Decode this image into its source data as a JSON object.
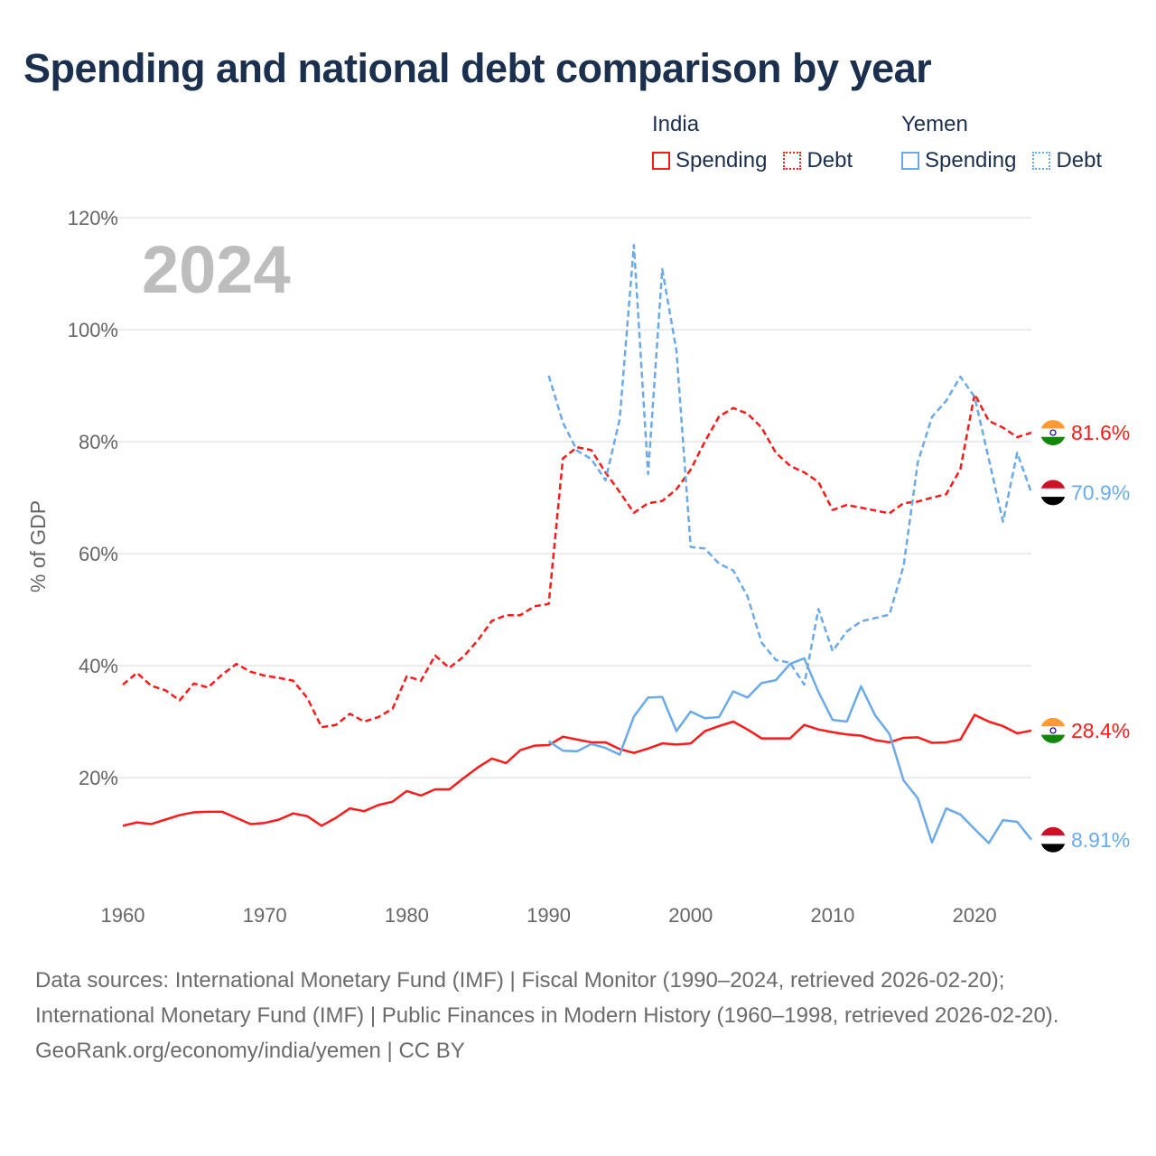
{
  "title": "Spending and national debt comparison by year",
  "legend": {
    "groups": [
      {
        "country": "India",
        "items": [
          "Spending",
          "Debt"
        ],
        "color": "#ff1a1a"
      },
      {
        "country": "Yemen",
        "items": [
          "Spending",
          "Debt"
        ],
        "color": "#6aaaea"
      }
    ]
  },
  "footer": {
    "line1": "Data sources: International Monetary Fund (IMF) | Fiscal Monitor (1990–2024, retrieved 2026-02-20); International Monetary Fund (IMF) | Public Finances in Modern History (1960–1998, retrieved 2026-02-20).",
    "line2": "GeoRank.org/economy/india/yemen | CC BY"
  },
  "chart_data": {
    "type": "line",
    "title": "Spending and national debt comparison by year",
    "year_label": "2024",
    "xlabel": "",
    "ylabel": "% of GDP",
    "xlim": [
      1960,
      2024
    ],
    "ylim": [
      0,
      120
    ],
    "x_ticks": [
      1960,
      1970,
      1980,
      1990,
      2000,
      2010,
      2020
    ],
    "y_ticks": [
      "20%",
      "40%",
      "60%",
      "80%",
      "100%",
      "120%"
    ],
    "y_tick_values": [
      20,
      40,
      60,
      80,
      100,
      120
    ],
    "grid": true,
    "legend_position": "top-right",
    "series": [
      {
        "name": "India Spending",
        "country": "India",
        "style": "solid",
        "color": "#ff1a1a",
        "start": 1960,
        "end_label": "28.4%",
        "values": [
          11.4,
          12,
          11.7,
          12.5,
          13.3,
          13.8,
          13.9,
          13.9,
          12.8,
          11.7,
          11.9,
          12.5,
          13.6,
          13.1,
          11.4,
          12.8,
          14.5,
          14,
          15.1,
          15.7,
          17.6,
          16.8,
          17.9,
          17.9,
          19.9,
          21.8,
          23.4,
          22.6,
          24.9,
          25.7,
          25.8,
          27.3,
          26.8,
          26.3,
          26.3,
          25.1,
          24.4,
          25.2,
          26.1,
          25.9,
          26.1,
          28.3,
          29.2,
          30.0,
          28.6,
          27.0,
          27.0,
          27.0,
          29.4,
          28.6,
          28.1,
          27.7,
          27.5,
          26.7,
          26.3,
          27.1,
          27.2,
          26.2,
          26.3,
          26.8,
          31.2,
          30.0,
          29.2,
          27.9,
          28.4
        ]
      },
      {
        "name": "India Debt",
        "country": "India",
        "style": "dashed",
        "color": "#ff1a1a",
        "start": 1960,
        "end_label": "81.6%",
        "values": [
          36.6,
          38.7,
          36.4,
          35.6,
          33.8,
          36.8,
          36.1,
          38.4,
          40.3,
          38.9,
          38.2,
          37.8,
          37.3,
          34.2,
          29,
          29.4,
          31.4,
          30,
          30.8,
          32.3,
          38.1,
          37.3,
          41.8,
          39.6,
          41.6,
          44.5,
          48,
          49,
          49,
          50.6,
          51,
          77,
          79,
          78.5,
          74.5,
          71,
          67.3,
          69,
          69.4,
          71.5,
          75,
          80,
          84.5,
          86,
          85,
          82.5,
          78,
          75.7,
          74.5,
          72.8,
          67.8,
          68.7,
          68.2,
          67.7,
          67.2,
          69,
          69.3,
          70,
          70.6,
          75.1,
          88.5,
          83.7,
          82.5,
          80.8,
          81.6
        ]
      },
      {
        "name": "Yemen Spending",
        "country": "Yemen",
        "style": "solid",
        "color": "#6aaaea",
        "start": 1990,
        "end_label": "8.91%",
        "values": [
          26.5,
          24.8,
          24.7,
          26,
          25.3,
          24.1,
          30.9,
          34.3,
          34.4,
          28.3,
          31.8,
          30.6,
          30.8,
          35.4,
          34.3,
          36.9,
          37.4,
          40.3,
          41.3,
          35.3,
          30.3,
          30,
          36.3,
          31.1,
          27.8,
          19.5,
          16.3,
          8.4,
          14.5,
          13.4,
          10.8,
          8.3,
          12.4,
          12.1,
          8.91
        ]
      },
      {
        "name": "Yemen Debt",
        "country": "Yemen",
        "style": "dashed",
        "color": "#6aaaea",
        "start": 1990,
        "end_label": "70.9%",
        "values": [
          91.8,
          83.4,
          78.4,
          76.9,
          73.1,
          84,
          115.1,
          74.2,
          110.8,
          96.2,
          61.2,
          60.9,
          58.2,
          57,
          52.4,
          44.1,
          41,
          40.5,
          36.6,
          50.1,
          42.6,
          46.1,
          47.9,
          48.5,
          49.1,
          57.8,
          76.3,
          84.4,
          87.3,
          91.6,
          88,
          76.9,
          65.7,
          78,
          70.9
        ]
      }
    ]
  }
}
